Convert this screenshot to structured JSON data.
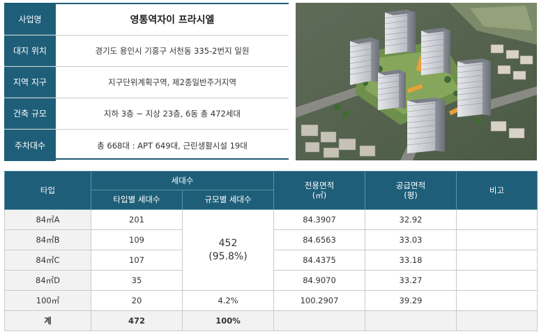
{
  "project_info": {
    "rows": [
      {
        "label": "사업명",
        "value": "영통역자이 프라시엘"
      },
      {
        "label": "대지 위치",
        "value": "경기도 용인시 기흥구 서천동 335-2번지 일원"
      },
      {
        "label": "지역 지구",
        "value": "지구단위계획구역, 제2종일반주거지역"
      },
      {
        "label": "건축 규모",
        "value": "지하 3층 ~ 지상 23층, 6동 총 472세대"
      },
      {
        "label": "주차대수",
        "value": "총 668대 : APT 649대, 근린생활시설 19대"
      }
    ]
  },
  "unit_table": {
    "headers": {
      "type": "타입",
      "households": "세대수",
      "by_type": "타입별 세대수",
      "by_size": "규모별 세대수",
      "exclusive_area_line1": "전용면적",
      "exclusive_area_line2": "(㎡)",
      "supply_area_line1": "공급면적",
      "supply_area_line2": "(평)",
      "note": "비고"
    },
    "rows": [
      {
        "type": "84㎡A",
        "count": "201",
        "exclusive": "84.3907",
        "supply": "32.92",
        "note": ""
      },
      {
        "type": "84㎡B",
        "count": "109",
        "exclusive": "84.6563",
        "supply": "33.03",
        "note": ""
      },
      {
        "type": "84㎡C",
        "count": "107",
        "exclusive": "84.4375",
        "supply": "33.18",
        "note": ""
      },
      {
        "type": "84㎡D",
        "count": "35",
        "exclusive": "84.9070",
        "supply": "33.27",
        "note": ""
      },
      {
        "type": "100㎡",
        "count": "20",
        "size_total": "4.2%",
        "exclusive": "100.2907",
        "supply": "39.29",
        "note": ""
      }
    ],
    "group_84": {
      "count": "452",
      "ratio": "(95.8%)"
    },
    "total": {
      "label": "계",
      "count": "472",
      "ratio": "100%"
    }
  },
  "colors": {
    "header_bg": "#1e5e78",
    "total_row_bg": "#f2f2f2",
    "border": "#c9c9c9"
  },
  "image": {
    "subject": "aerial-rendering-apartment-complex"
  }
}
